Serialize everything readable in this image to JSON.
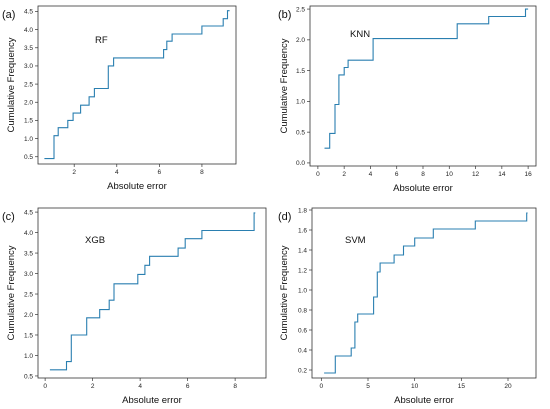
{
  "colors": {
    "line": "#2a7fb0",
    "axis": "#333333"
  },
  "chart_data": [
    {
      "type": "line",
      "panel_tag": "(a)",
      "model_label": "RF",
      "xlabel": "Absolute error",
      "ylabel": "Cumulative Frequency",
      "xlim": [
        0.3,
        9.6
      ],
      "ylim": [
        0.3,
        4.65
      ],
      "xticks": [
        2,
        4,
        6,
        8
      ],
      "yticks": [
        0.5,
        1.0,
        1.5,
        2.0,
        2.5,
        3.0,
        3.5,
        4.0,
        4.5
      ],
      "tick_labels_x": [
        "2",
        "4",
        "6",
        "8"
      ],
      "tick_labels_y": [
        "0.5",
        "1.0",
        "1.5",
        "2.0",
        "2.5",
        "3.0",
        "3.5",
        "4.0",
        "4.5"
      ],
      "series": [
        {
          "step": true,
          "x": [
            0.6,
            1.05,
            1.25,
            1.7,
            1.95,
            2.3,
            2.7,
            2.95,
            3.6,
            3.85,
            6.2,
            6.35,
            6.6,
            8.0,
            9.0,
            9.2,
            9.3
          ],
          "y": [
            0.45,
            1.08,
            1.3,
            1.5,
            1.7,
            1.92,
            2.15,
            2.38,
            3.0,
            3.22,
            3.45,
            3.68,
            3.88,
            4.1,
            4.3,
            4.52,
            4.52
          ]
        }
      ]
    },
    {
      "type": "line",
      "panel_tag": "(b)",
      "model_label": "KNN",
      "xlabel": "Absolute error",
      "ylabel": "Cumulative Frequency",
      "xlim": [
        -0.6,
        16.6
      ],
      "ylim": [
        -0.05,
        2.55
      ],
      "xticks": [
        0,
        2,
        4,
        6,
        8,
        10,
        12,
        14,
        16
      ],
      "yticks": [
        0.0,
        0.5,
        1.0,
        1.5,
        2.0,
        2.5
      ],
      "tick_labels_x": [
        "0",
        "2",
        "4",
        "6",
        "8",
        "10",
        "12",
        "14",
        "16"
      ],
      "tick_labels_y": [
        "0.0",
        "0.5",
        "1.0",
        "1.5",
        "2.0",
        "2.5"
      ],
      "series": [
        {
          "step": true,
          "x": [
            0.5,
            0.9,
            1.3,
            1.6,
            2.0,
            2.3,
            4.2,
            10.6,
            13.0,
            15.8,
            16.0
          ],
          "y": [
            0.24,
            0.48,
            0.95,
            1.43,
            1.55,
            1.67,
            2.02,
            2.26,
            2.38,
            2.5,
            2.5
          ]
        }
      ]
    },
    {
      "type": "line",
      "panel_tag": "(c)",
      "model_label": "XGB",
      "xlabel": "Absolute error",
      "ylabel": "Cumulative Frequency",
      "xlim": [
        -0.3,
        9.3
      ],
      "ylim": [
        0.45,
        4.6
      ],
      "xticks": [
        0,
        2,
        4,
        6,
        8
      ],
      "yticks": [
        0.5,
        1.0,
        1.5,
        2.0,
        2.5,
        3.0,
        3.5,
        4.0,
        4.5
      ],
      "tick_labels_x": [
        "0",
        "2",
        "4",
        "6",
        "8"
      ],
      "tick_labels_y": [
        "0.5",
        "1.0",
        "1.5",
        "2.0",
        "2.5",
        "3.0",
        "3.5",
        "4.0",
        "4.5"
      ],
      "series": [
        {
          "step": true,
          "x": [
            0.2,
            0.9,
            1.1,
            1.75,
            2.3,
            2.7,
            2.9,
            3.9,
            4.2,
            4.4,
            5.6,
            5.9,
            6.6,
            8.8,
            8.85
          ],
          "y": [
            0.65,
            0.85,
            1.5,
            1.92,
            2.12,
            2.35,
            2.75,
            2.98,
            3.2,
            3.42,
            3.62,
            3.85,
            4.05,
            4.48,
            4.48
          ]
        }
      ]
    },
    {
      "type": "line",
      "panel_tag": "(d)",
      "model_label": "SVM",
      "xlabel": "Absolute error",
      "ylabel": "Cumulative Frequency",
      "xlim": [
        -1,
        23
      ],
      "ylim": [
        0.12,
        1.82
      ],
      "xticks": [
        0,
        5,
        10,
        15,
        20
      ],
      "yticks": [
        0.2,
        0.4,
        0.6,
        0.8,
        1.0,
        1.2,
        1.4,
        1.6,
        1.8
      ],
      "tick_labels_x": [
        "0",
        "5",
        "10",
        "15",
        "20"
      ],
      "tick_labels_y": [
        "0.2",
        "0.4",
        "0.6",
        "0.8",
        "1.0",
        "1.2",
        "1.4",
        "1.6",
        "1.8"
      ],
      "series": [
        {
          "step": true,
          "x": [
            0.3,
            1.5,
            3.2,
            3.6,
            3.9,
            4.4,
            5.6,
            6.0,
            6.3,
            6.7,
            7.8,
            8.8,
            10.0,
            12.0,
            16.5,
            22.0,
            22.1
          ],
          "y": [
            0.17,
            0.34,
            0.42,
            0.68,
            0.76,
            0.76,
            0.93,
            1.18,
            1.27,
            1.27,
            1.35,
            1.44,
            1.52,
            1.61,
            1.69,
            1.77,
            1.77
          ]
        }
      ]
    }
  ]
}
